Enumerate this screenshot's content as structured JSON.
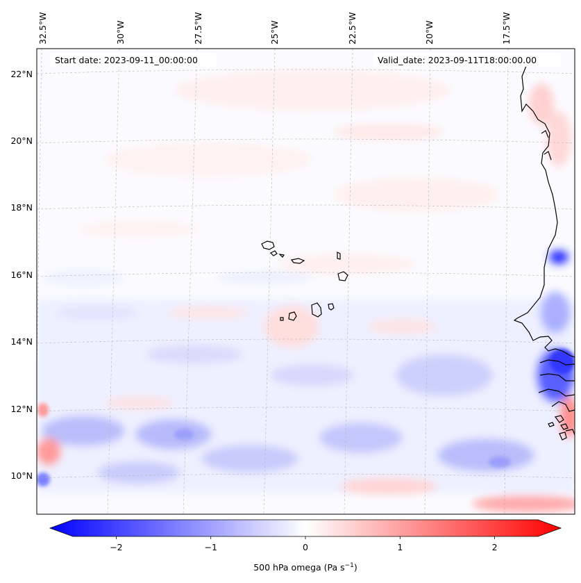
{
  "map": {
    "start_date_text": "Start date: 2023-09-11_00:00:00",
    "valid_date_text": "Valid_date: 2023-09-11T18:00:00.00",
    "lat_labels": [
      "22°N",
      "20°N",
      "18°N",
      "16°N",
      "14°N",
      "12°N",
      "10°N"
    ],
    "lon_labels": [
      "32.5°W",
      "30°W",
      "27.5°W",
      "25°W",
      "22.5°W",
      "20°W",
      "17.5°W"
    ],
    "field": "500 hPa omega",
    "colors": {
      "negative": "#0000ff",
      "positive": "#ff0000",
      "neutral": "#ffffff",
      "coastline": "#000000",
      "gridline": "#b0b0b0"
    }
  },
  "colorbar": {
    "ticks": [
      -2,
      -1,
      0,
      1,
      2
    ],
    "tick_labels": [
      "−2",
      "−1",
      "0",
      "1",
      "2"
    ],
    "range": [
      -2.7,
      2.7
    ],
    "label_main": "500 hPa omega (Pa s",
    "label_exp": "−1",
    "label_close": ")"
  }
}
